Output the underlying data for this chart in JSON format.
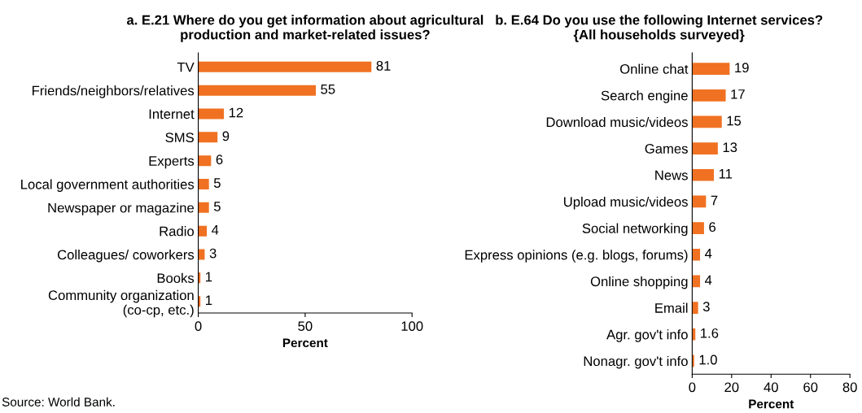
{
  "chart_data": [
    {
      "type": "bar",
      "orientation": "horizontal",
      "title": "a. E.21 Where do you get information about agricultural\nproduction and market-related issues?",
      "xlabel": "Percent",
      "categories": [
        "TV",
        "Friends/neighbors/relatives",
        "Internet",
        "SMS",
        "Experts",
        "Local government authorities",
        "Newspaper or magazine",
        "Radio",
        "Colleagues/ coworkers",
        "Books",
        "Community organization\n(co-cp, etc.)"
      ],
      "values": [
        81,
        55,
        12,
        9,
        6,
        5,
        5,
        4,
        3,
        1,
        1
      ],
      "data_labels": true,
      "color": "#f07122",
      "xlim": [
        0,
        100
      ],
      "xticks": [
        0,
        50,
        100
      ],
      "grid": false,
      "annotations": [
        "Source: World Bank."
      ]
    },
    {
      "type": "bar",
      "orientation": "horizontal",
      "title": "b. E.64 Do you use the following Internet services?\n{All households surveyed}",
      "xlabel": "Percent",
      "categories": [
        "Online chat",
        "Search engine",
        "Download music/videos",
        "Games",
        "News",
        "Upload music/videos",
        "Social networking",
        "Express opinions (e.g. blogs, forums)",
        "Online shopping",
        "Email",
        "Agr. gov't info",
        "Nonagr. gov't info"
      ],
      "values": [
        19,
        17,
        15,
        13,
        11,
        7,
        6,
        4,
        4,
        3,
        1.6,
        1.0
      ],
      "value_labels": [
        "19",
        "17",
        "15",
        "13",
        "11",
        "7",
        "6",
        "4",
        "4",
        "3",
        "1.6",
        "1.0"
      ],
      "color": "#f07122",
      "xlim": [
        0,
        80
      ],
      "xticks": [
        0,
        20,
        40,
        60,
        80
      ],
      "grid": false
    }
  ]
}
